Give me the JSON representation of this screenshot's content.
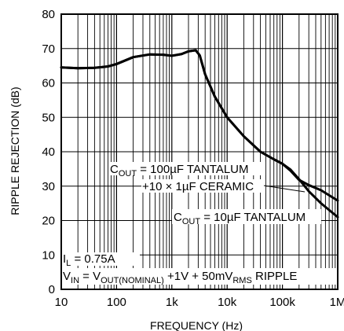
{
  "chart_data": {
    "type": "line",
    "title": "",
    "xlabel": "FREQUENCY (Hz)",
    "ylabel": "RIPPLE REJECTION (dB)",
    "x_scale": "log",
    "xlim": [
      10,
      1000000
    ],
    "ylim": [
      0,
      80
    ],
    "grid": true,
    "x_tick_labels": [
      "10",
      "100",
      "1k",
      "10k",
      "100k",
      "1M"
    ],
    "y_tick_labels": [
      "0",
      "10",
      "20",
      "30",
      "40",
      "50",
      "60",
      "70",
      "80"
    ],
    "series": [
      {
        "name": "COUT = 100µF TANTALUM +10 × 1µF CERAMIC",
        "x": [
          10,
          20,
          40,
          70,
          100,
          200,
          400,
          700,
          1000,
          1500,
          2000,
          2700,
          3200,
          4000,
          6000,
          10000,
          20000,
          40000,
          70000,
          100000,
          140000,
          200000,
          300000,
          500000,
          1000000
        ],
        "y": [
          64.5,
          64.3,
          64.4,
          64.8,
          65.5,
          67.5,
          68.3,
          68.2,
          67.9,
          68.4,
          69.2,
          69.5,
          68.0,
          62.5,
          56.0,
          50.0,
          44.5,
          40.0,
          37.8,
          36.5,
          34.5,
          31.8,
          30.3,
          28.8,
          25.8
        ]
      },
      {
        "name": "COUT = 10µF TANTALUM",
        "x": [
          10,
          20,
          40,
          70,
          100,
          200,
          400,
          700,
          1000,
          1500,
          2000,
          2700,
          3200,
          4000,
          6000,
          10000,
          20000,
          40000,
          70000,
          100000,
          140000,
          200000,
          300000,
          500000,
          1000000
        ],
        "y": [
          64.5,
          64.3,
          64.4,
          64.8,
          65.5,
          67.5,
          68.3,
          68.2,
          67.9,
          68.4,
          69.2,
          69.5,
          68.0,
          62.5,
          56.0,
          50.0,
          44.5,
          40.0,
          37.8,
          36.5,
          34.8,
          32.0,
          28.5,
          25.0,
          21.0
        ]
      }
    ],
    "annotations": {
      "label_100u_line1": "C",
      "label_100u_sub": "OUT",
      "label_100u_rest": " = 100µF TANTALUM",
      "label_100u_line2": "+10 × 1µF CERAMIC",
      "label_10u_c": "C",
      "label_10u_sub": "OUT",
      "label_10u_rest": " = 10µF TANTALUM",
      "cond_il_a": "I",
      "cond_il_sub": "L",
      "cond_il_rest": " = 0.75A",
      "cond_vin_a": "V",
      "cond_vin_sub1": "IN",
      "cond_vin_b": " = V",
      "cond_vin_sub2": "OUT(NOMINAL)",
      "cond_vin_c": " +1V + 50mV",
      "cond_vin_sub3": "RMS",
      "cond_vin_d": " RIPPLE"
    },
    "colors": {
      "line": "#000000",
      "grid": "#000000",
      "background": "#ffffff"
    }
  }
}
